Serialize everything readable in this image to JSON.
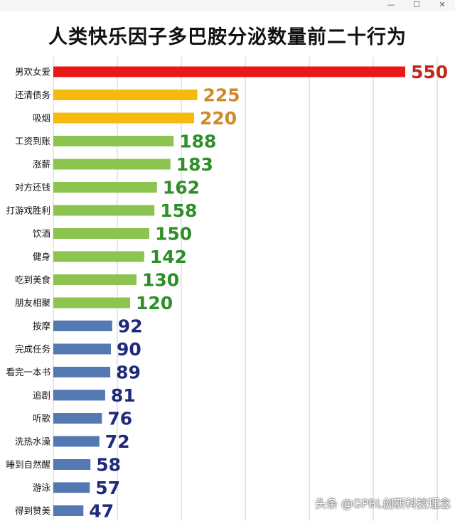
{
  "window": {
    "minimize_icon": "minimize-icon",
    "maximize_icon": "maximize-icon",
    "close_icon": "close-icon"
  },
  "watermark": "头条 @GPBL创新科技理念",
  "colors": {
    "top": "#e81818",
    "high": "#f5b90f",
    "medium": "#8dc34f",
    "low": "#5378b2",
    "grid": "#cfcfcf",
    "label_top": "#c0281c",
    "label_high": "#d08a2c",
    "label_medium": "#2d8f27",
    "label_low": "#1f2a7a"
  },
  "chart_data": {
    "type": "bar",
    "orientation": "horizontal",
    "title": "人类快乐因子多巴胺分泌数量前二十行为",
    "categories": [
      "男欢女爱",
      "还清债务",
      "吸烟",
      "工资到账",
      "涨薪",
      "对方还钱",
      "打游戏胜利",
      "饮酒",
      "健身",
      "吃到美食",
      "朋友相聚",
      "按摩",
      "完成任务",
      "看完一本书",
      "追剧",
      "听歌",
      "洗热水澡",
      "睡到自然醒",
      "游泳",
      "得到赞美"
    ],
    "values": [
      550,
      225,
      220,
      188,
      183,
      162,
      158,
      150,
      142,
      130,
      120,
      92,
      90,
      89,
      81,
      76,
      72,
      58,
      57,
      47
    ],
    "color_groups": [
      "top",
      "high",
      "high",
      "medium",
      "medium",
      "medium",
      "medium",
      "medium",
      "medium",
      "medium",
      "medium",
      "low",
      "low",
      "low",
      "low",
      "low",
      "low",
      "low",
      "low",
      "low"
    ],
    "xlim": [
      0,
      600
    ],
    "grid": true,
    "legend": "none"
  }
}
